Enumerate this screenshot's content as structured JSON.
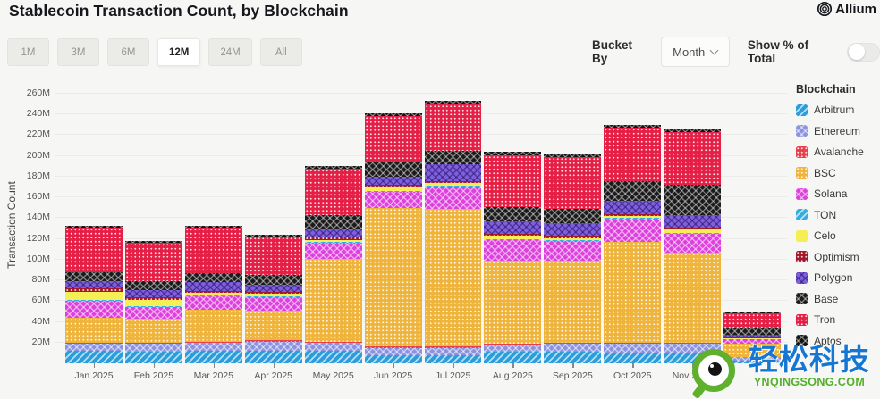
{
  "header": {
    "title": "Stablecoin Transaction Count, by Blockchain",
    "brand": "Allium"
  },
  "controls": {
    "ranges": [
      "1M",
      "3M",
      "6M",
      "12M",
      "24M",
      "All"
    ],
    "active_range": "12M",
    "bucket_by_label": "Bucket By",
    "bucket_value": "Month",
    "show_pct_label": "Show % of Total",
    "show_pct_on": false
  },
  "chart_data": {
    "type": "bar",
    "stacked": true,
    "title": "Stablecoin Transaction Count, by Blockchain",
    "ylabel": "Transaction Count",
    "xlabel": "",
    "unit": "M",
    "ylim": [
      0,
      268
    ],
    "grid": true,
    "legend_position": "right",
    "legend_title": "Blockchain",
    "y_ticks": [
      "20M",
      "40M",
      "60M",
      "80M",
      "100M",
      "120M",
      "140M",
      "160M",
      "180M",
      "200M",
      "220M",
      "240M",
      "260M"
    ],
    "categories": [
      "Jan 2025",
      "Feb 2025",
      "Mar 2025",
      "Apr 2025",
      "May 2025",
      "Jun 2025",
      "Jul 2025",
      "Aug 2025",
      "Sep 2025",
      "Oct 2025",
      "Nov 2025",
      "Dec 2025"
    ],
    "x_tick_labels": [
      "Jan 2025",
      "Feb 2025",
      "Mar 2025",
      "Apr 2025",
      "May 2025",
      "Jun 2025",
      "Jul 2025",
      "Aug 2025",
      "Sep 2025",
      "Oct 2025",
      "Nov 2025",
      ""
    ],
    "series": [
      {
        "name": "Arbitrum",
        "color": "#2b9ddb",
        "pattern": "diag",
        "values": [
          12,
          11,
          12,
          12,
          12,
          8,
          8,
          11,
          11,
          10,
          10,
          3
        ]
      },
      {
        "name": "Ethereum",
        "color": "#8b93e0",
        "pattern": "cross",
        "values": [
          7,
          8,
          8,
          9,
          8,
          7,
          7,
          7,
          8,
          9,
          9,
          3
        ]
      },
      {
        "name": "Avalanche",
        "color": "#e8414b",
        "pattern": "dots",
        "values": [
          1,
          1,
          1,
          1,
          1,
          1,
          1,
          1,
          1,
          1,
          1,
          0.4
        ]
      },
      {
        "name": "BSC",
        "color": "#efb43c",
        "pattern": "dots",
        "values": [
          24,
          23,
          31,
          29,
          80,
          134,
          133,
          80,
          79,
          97,
          87,
          13
        ]
      },
      {
        "name": "Solana",
        "color": "#dd40dd",
        "pattern": "cross",
        "values": [
          16,
          11,
          13,
          13,
          15,
          15,
          21,
          20,
          19,
          22,
          18,
          4
        ]
      },
      {
        "name": "TON",
        "color": "#33aee3",
        "pattern": "diag",
        "values": [
          1,
          1,
          1,
          1,
          1,
          1,
          1,
          1,
          1,
          1,
          1,
          0.3
        ]
      },
      {
        "name": "Celo",
        "color": "#f6ee55",
        "pattern": "solid",
        "values": [
          8,
          6,
          2,
          2,
          2,
          4,
          3,
          3,
          2,
          2,
          3,
          0.5
        ]
      },
      {
        "name": "Optimism",
        "color": "#a4182b",
        "pattern": "dots",
        "values": [
          3,
          3,
          2,
          2,
          3,
          2,
          2,
          2,
          2,
          2,
          2,
          0.5
        ]
      },
      {
        "name": "Polygon",
        "color": "#7d5fe0",
        "pattern": "crossdark",
        "values": [
          7,
          7,
          8,
          7,
          8,
          8,
          16,
          12,
          12,
          13,
          12,
          3
        ]
      },
      {
        "name": "Base",
        "color": "#1b1b1b",
        "pattern": "crossgray",
        "values": [
          9,
          8,
          9,
          9,
          13,
          14,
          13,
          14,
          14,
          19,
          29,
          7
        ]
      },
      {
        "name": "Tron",
        "color": "#e51f45",
        "pattern": "dots",
        "values": [
          43,
          37,
          44,
          37,
          45,
          45,
          45,
          50,
          50,
          51,
          51,
          14
        ]
      },
      {
        "name": "Aptos",
        "color": "#141414",
        "pattern": "crossgray",
        "values": [
          2,
          2,
          2,
          2,
          2,
          2,
          3,
          3,
          3,
          3,
          3,
          1
        ]
      }
    ]
  },
  "watermark": {
    "cn_text": "轻松科技",
    "url_text": "YNQINGSONG.COM"
  }
}
